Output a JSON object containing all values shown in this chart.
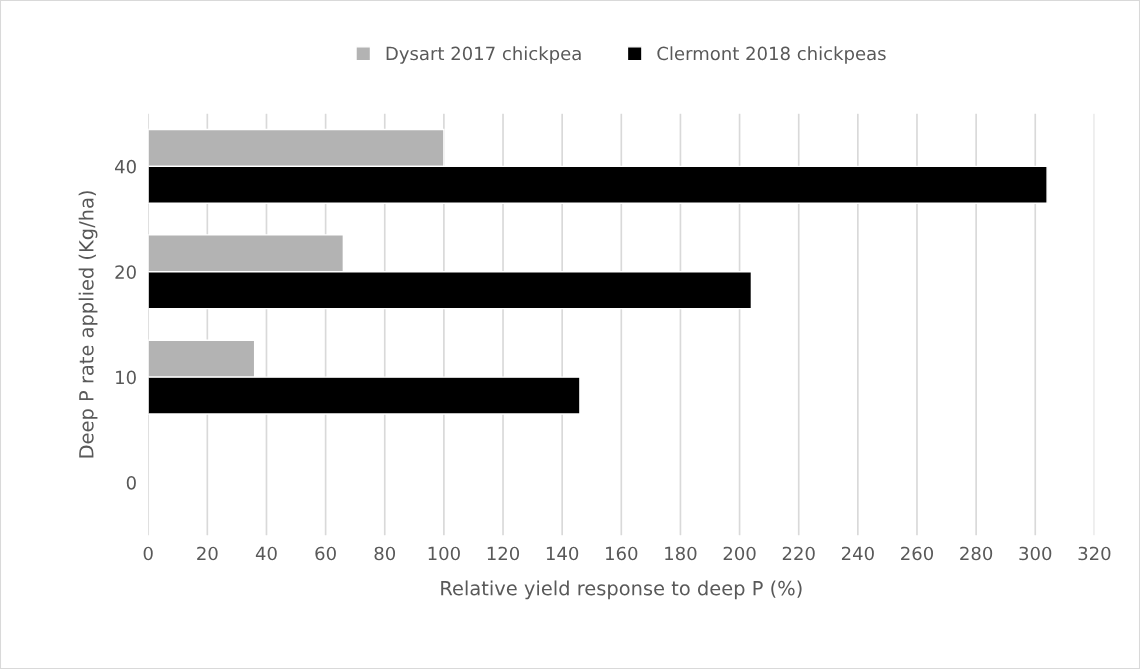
{
  "chart_data": {
    "type": "bar",
    "orientation": "horizontal",
    "xlabel": "Relative yield response to deep P (%)",
    "ylabel": "Deep P rate applied (Kg/ha)",
    "categories": [
      "40",
      "20",
      "10",
      "0"
    ],
    "series": [
      {
        "name": "Dysart 2017 chickpea",
        "color": "#b3b3b3",
        "values": [
          100,
          66,
          36,
          null
        ]
      },
      {
        "name": "Clermont 2018 chickpeas",
        "color": "#000000",
        "values": [
          304,
          204,
          146,
          null
        ]
      }
    ],
    "xlim": [
      0,
      320
    ],
    "xticks": [
      0,
      20,
      40,
      60,
      80,
      100,
      120,
      140,
      160,
      180,
      200,
      220,
      240,
      260,
      280,
      300,
      320
    ],
    "grid": "x",
    "legend": "top"
  }
}
